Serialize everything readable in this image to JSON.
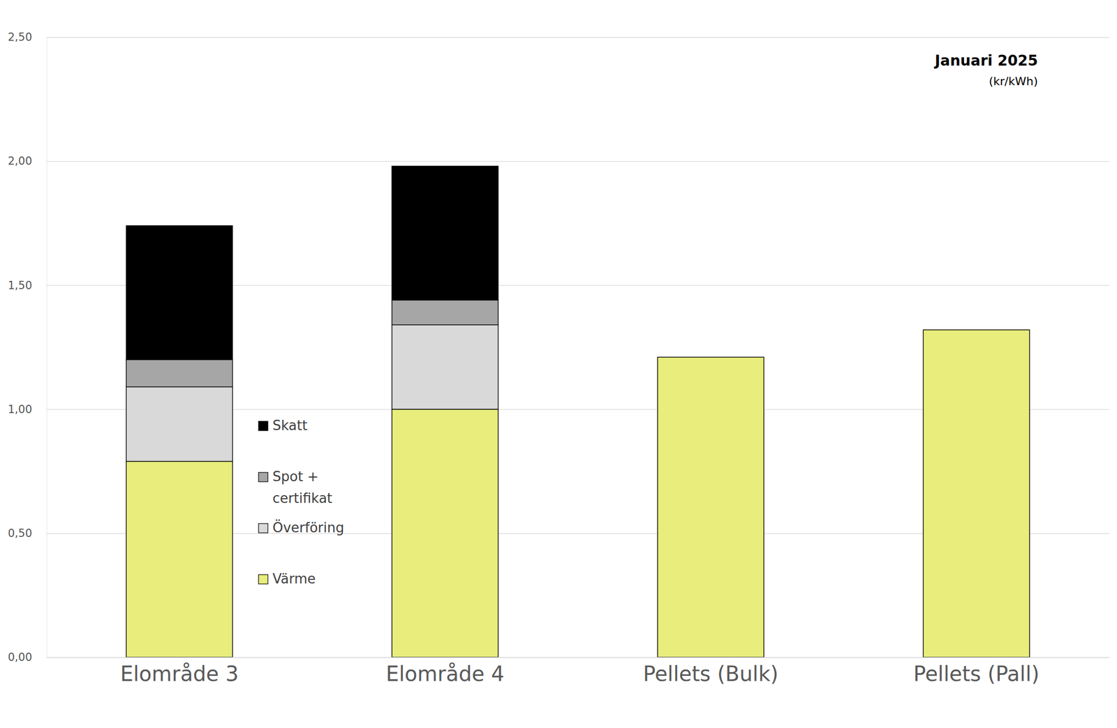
{
  "chart_data": {
    "type": "bar",
    "title": "Januari 2025",
    "subtitle": "(kr/kWh)",
    "categories": [
      "Elområde 3",
      "Elområde 4",
      "Pellets (Bulk)",
      "Pellets (Pall)"
    ],
    "series": [
      {
        "name": "Värme",
        "color": "#e8ed7b",
        "values": [
          0.79,
          1.0,
          1.21,
          1.32
        ]
      },
      {
        "name": "Överföring",
        "color": "#d9d9d9",
        "values": [
          0.3,
          0.34,
          null,
          null
        ]
      },
      {
        "name": "Spot + certifikat",
        "color": "#a6a6a6",
        "values": [
          0.11,
          0.1,
          null,
          null
        ]
      },
      {
        "name": "Skatt",
        "color": "#000000",
        "values": [
          0.54,
          0.54,
          null,
          null
        ]
      }
    ],
    "stacked": true,
    "ylim": [
      0,
      2.5
    ],
    "yticks": [
      {
        "value": 0,
        "label": "0,00"
      },
      {
        "value": 0.5,
        "label": "0,50"
      },
      {
        "value": 1,
        "label": "1,00"
      },
      {
        "value": 1.5,
        "label": "1,50"
      },
      {
        "value": 2,
        "label": "2,00"
      },
      {
        "value": 2.5,
        "label": "2,50"
      }
    ],
    "grid": true,
    "legend": "left"
  }
}
